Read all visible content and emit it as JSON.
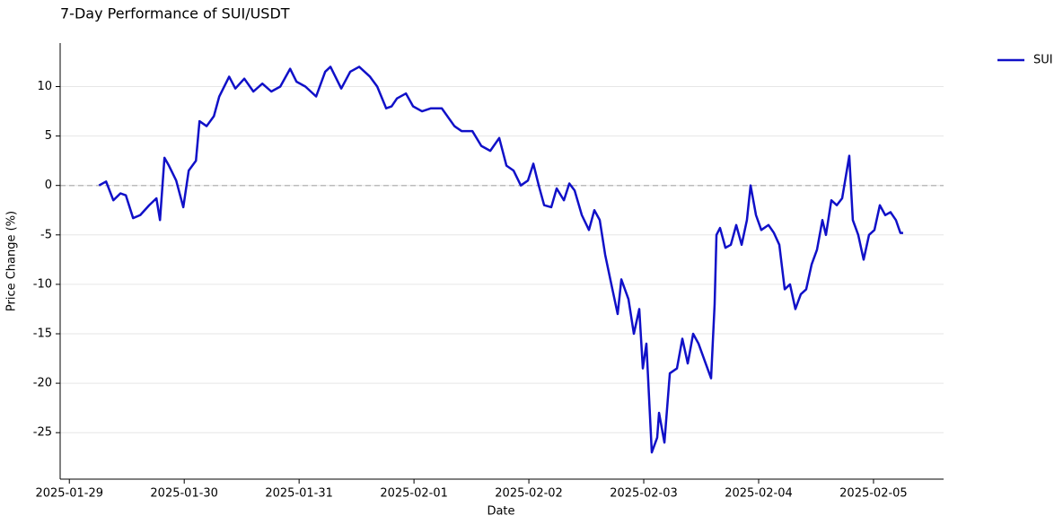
{
  "chart_data": {
    "type": "line",
    "title": "7-Day Performance of SUI/USDT",
    "xlabel": "Date",
    "ylabel": "Price Change (%)",
    "x": [
      0.258,
      0.32,
      0.383,
      0.445,
      0.492,
      0.555,
      0.617,
      0.695,
      0.758,
      0.789,
      0.828,
      0.867,
      0.93,
      0.992,
      1.039,
      1.102,
      1.133,
      1.195,
      1.258,
      1.305,
      1.391,
      1.445,
      1.523,
      1.602,
      1.68,
      1.758,
      1.836,
      1.922,
      1.977,
      2.055,
      2.148,
      2.227,
      2.273,
      2.367,
      2.445,
      2.523,
      2.617,
      2.68,
      2.758,
      2.805,
      2.852,
      2.93,
      2.992,
      3.07,
      3.148,
      3.242,
      3.352,
      3.414,
      3.508,
      3.586,
      3.664,
      3.742,
      3.805,
      3.867,
      3.93,
      3.992,
      4.039,
      4.086,
      4.133,
      4.195,
      4.242,
      4.305,
      4.352,
      4.398,
      4.461,
      4.523,
      4.57,
      4.617,
      4.664,
      4.727,
      4.773,
      4.805,
      4.867,
      4.914,
      4.961,
      4.992,
      5.023,
      5.07,
      5.117,
      5.133,
      5.18,
      5.227,
      5.289,
      5.336,
      5.383,
      5.43,
      5.477,
      5.539,
      5.586,
      5.617,
      5.633,
      5.664,
      5.711,
      5.758,
      5.805,
      5.852,
      5.898,
      5.93,
      5.977,
      6.023,
      6.086,
      6.133,
      6.18,
      6.227,
      6.273,
      6.32,
      6.367,
      6.414,
      6.461,
      6.508,
      6.555,
      6.586,
      6.633,
      6.68,
      6.727,
      6.789,
      6.82,
      6.867,
      6.914,
      6.961,
      7.008,
      7.055,
      7.102,
      7.148,
      7.195,
      7.234,
      7.258
    ],
    "series": [
      {
        "name": "SUI",
        "color": "#1010c8",
        "values": [
          0,
          0.4,
          -1.5,
          -0.8,
          -1.0,
          -3.3,
          -3.0,
          -2.0,
          -1.3,
          -3.5,
          2.8,
          2.0,
          0.5,
          -2.2,
          1.5,
          2.5,
          6.5,
          6.0,
          7.0,
          9.0,
          11.0,
          9.8,
          10.8,
          9.5,
          10.3,
          9.5,
          10.0,
          11.8,
          10.5,
          10.0,
          9.0,
          11.5,
          12.0,
          9.8,
          11.5,
          12.0,
          11.0,
          10.0,
          7.8,
          8.0,
          8.8,
          9.3,
          8.0,
          7.5,
          7.8,
          7.8,
          6.0,
          5.5,
          5.5,
          4.0,
          3.5,
          4.8,
          2.0,
          1.5,
          0,
          0.5,
          2.2,
          0,
          -2.0,
          -2.2,
          -0.3,
          -1.5,
          0.2,
          -0.5,
          -3.0,
          -4.5,
          -2.5,
          -3.5,
          -7.0,
          -10.5,
          -13.0,
          -9.5,
          -11.5,
          -15.0,
          -12.5,
          -18.5,
          -16.0,
          -27.0,
          -25.5,
          -23.0,
          -26.0,
          -19.0,
          -18.5,
          -15.5,
          -18.0,
          -15.0,
          -16.0,
          -18.0,
          -19.5,
          -12.0,
          -5.0,
          -4.3,
          -6.3,
          -6.0,
          -4.0,
          -6.0,
          -3.5,
          0,
          -3.0,
          -4.5,
          -4.0,
          -4.8,
          -6.0,
          -10.5,
          -10.0,
          -12.5,
          -11.0,
          -10.5,
          -8.0,
          -6.5,
          -3.5,
          -5.0,
          -1.5,
          -2.0,
          -1.3,
          3.0,
          -3.5,
          -5.0,
          -7.5,
          -5.0,
          -4.5,
          -2.0,
          -3.0,
          -2.7,
          -3.5,
          -4.8,
          -4.8
        ]
      }
    ],
    "xlim": [
      -0.08,
      7.61
    ],
    "ylim": [
      -29.7,
      14.4
    ],
    "xticks": [
      {
        "value": 0,
        "label": "2025-01-29"
      },
      {
        "value": 1,
        "label": "2025-01-30"
      },
      {
        "value": 2,
        "label": "2025-01-31"
      },
      {
        "value": 3,
        "label": "2025-02-01"
      },
      {
        "value": 4,
        "label": "2025-02-02"
      },
      {
        "value": 5,
        "label": "2025-02-03"
      },
      {
        "value": 6,
        "label": "2025-02-04"
      },
      {
        "value": 7,
        "label": "2025-02-05"
      }
    ],
    "yticks": [
      -25,
      -20,
      -15,
      -10,
      -5,
      0,
      5,
      10
    ],
    "grid": true,
    "zero_line": true,
    "legend": "upper right"
  }
}
